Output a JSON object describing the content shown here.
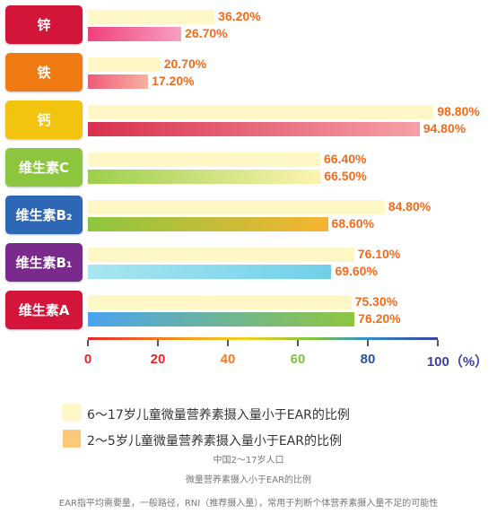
{
  "chart_data": {
    "type": "bar",
    "categories": [
      "锌",
      "铁",
      "钙",
      "维生素C",
      "维生素B₂",
      "维生素B₁",
      "维生素A"
    ],
    "series": [
      {
        "name": "6～17岁儿童微量营养素摄入量小于EAR的比例",
        "values": [
          36.2,
          20.7,
          98.8,
          66.4,
          84.8,
          76.1,
          75.3
        ],
        "labels": [
          "36.20%",
          "20.70%",
          "98.80%",
          "66.40%",
          "84.80%",
          "76.10%",
          "75.30%"
        ]
      },
      {
        "name": "2～5岁儿童微量营养素摄入量小于EAR的比例",
        "values": [
          26.7,
          17.2,
          94.8,
          66.5,
          68.6,
          69.6,
          76.2
        ],
        "labels": [
          "26.70%",
          "17.20%",
          "94.80%",
          "66.50%",
          "68.60%",
          "69.60%",
          "76.20%"
        ]
      }
    ],
    "xlim": [
      0,
      100
    ],
    "x_ticks": [
      "0",
      "20",
      "40",
      "60",
      "80",
      "100（%）"
    ],
    "legend_position": "bottom",
    "category_colors": [
      "#d4153a",
      "#f07b12",
      "#f2c40f",
      "#8cc63f",
      "#2e67b5",
      "#7a2a8c",
      "#d4153a"
    ],
    "bar_gradients": [
      [
        "#f0407a",
        "#f7a0c0"
      ],
      [
        "#f05a7a",
        "#f7b2a0"
      ],
      [
        "#d9304f",
        "#f6a0a8"
      ],
      [
        "#9bcf4a",
        "#fdf4b0"
      ],
      [
        "#8cc63f",
        "#f7b430"
      ],
      [
        "#a8e6f0",
        "#6fd0e8"
      ],
      [
        "#4aa3f0",
        "#8fc63f"
      ]
    ],
    "legend_colors": [
      "#fff8c6",
      "#fbc977"
    ],
    "notes": [
      "中国2～17岁人口",
      "微量营养素摄入小于EAR的比例",
      "EAR指平均需要量，一般路径，RNI（推荐摄入量），常用于判断个体营养素摄入量不足的可能性"
    ]
  }
}
